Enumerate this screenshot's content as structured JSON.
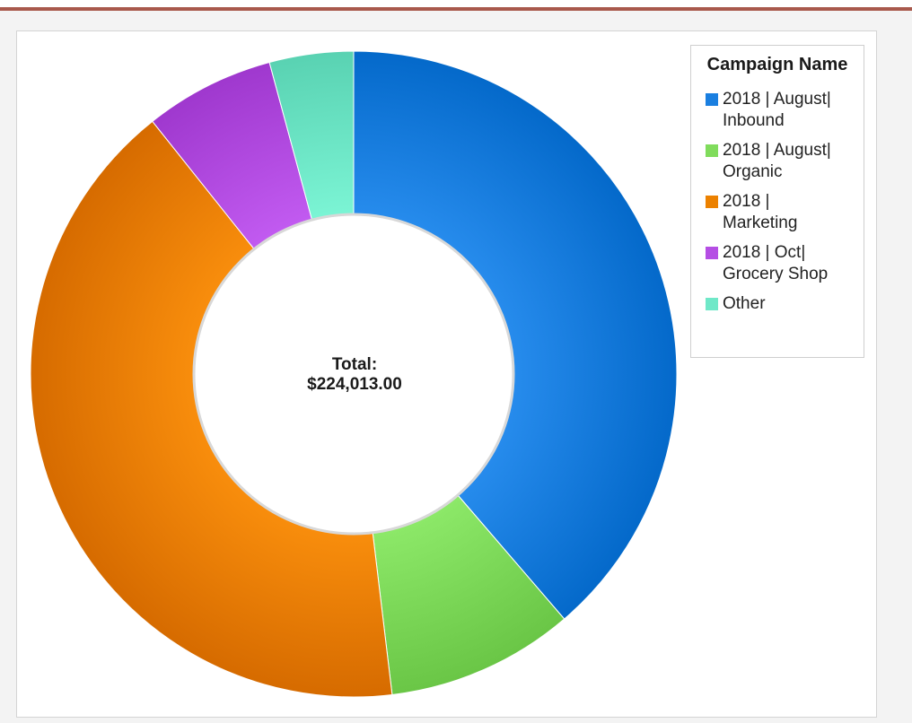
{
  "chart_data": {
    "type": "pie",
    "variant": "donut",
    "legend_title": "Campaign Name",
    "center_label": {
      "line1": "Total:",
      "line2": "$224,013.00"
    },
    "slices": [
      {
        "label": "2018 | August| Inbound",
        "value": 38.7,
        "color": "#1a7fe0"
      },
      {
        "label": "2018 | August| Organic",
        "value": 9.4,
        "color": "#80dc5c"
      },
      {
        "label": "2018 | Marketing",
        "value": 41.2,
        "color": "#ec8100"
      },
      {
        "label": "2018 | Oct| Grocery Shop",
        "value": 6.5,
        "color": "#b54ee4"
      },
      {
        "label": "Other",
        "value": 4.2,
        "color": "#6fe8c8"
      }
    ],
    "legend_position": "top-right",
    "start_angle": "12 o'clock",
    "direction": "clockwise",
    "value_units": "percent of total"
  }
}
